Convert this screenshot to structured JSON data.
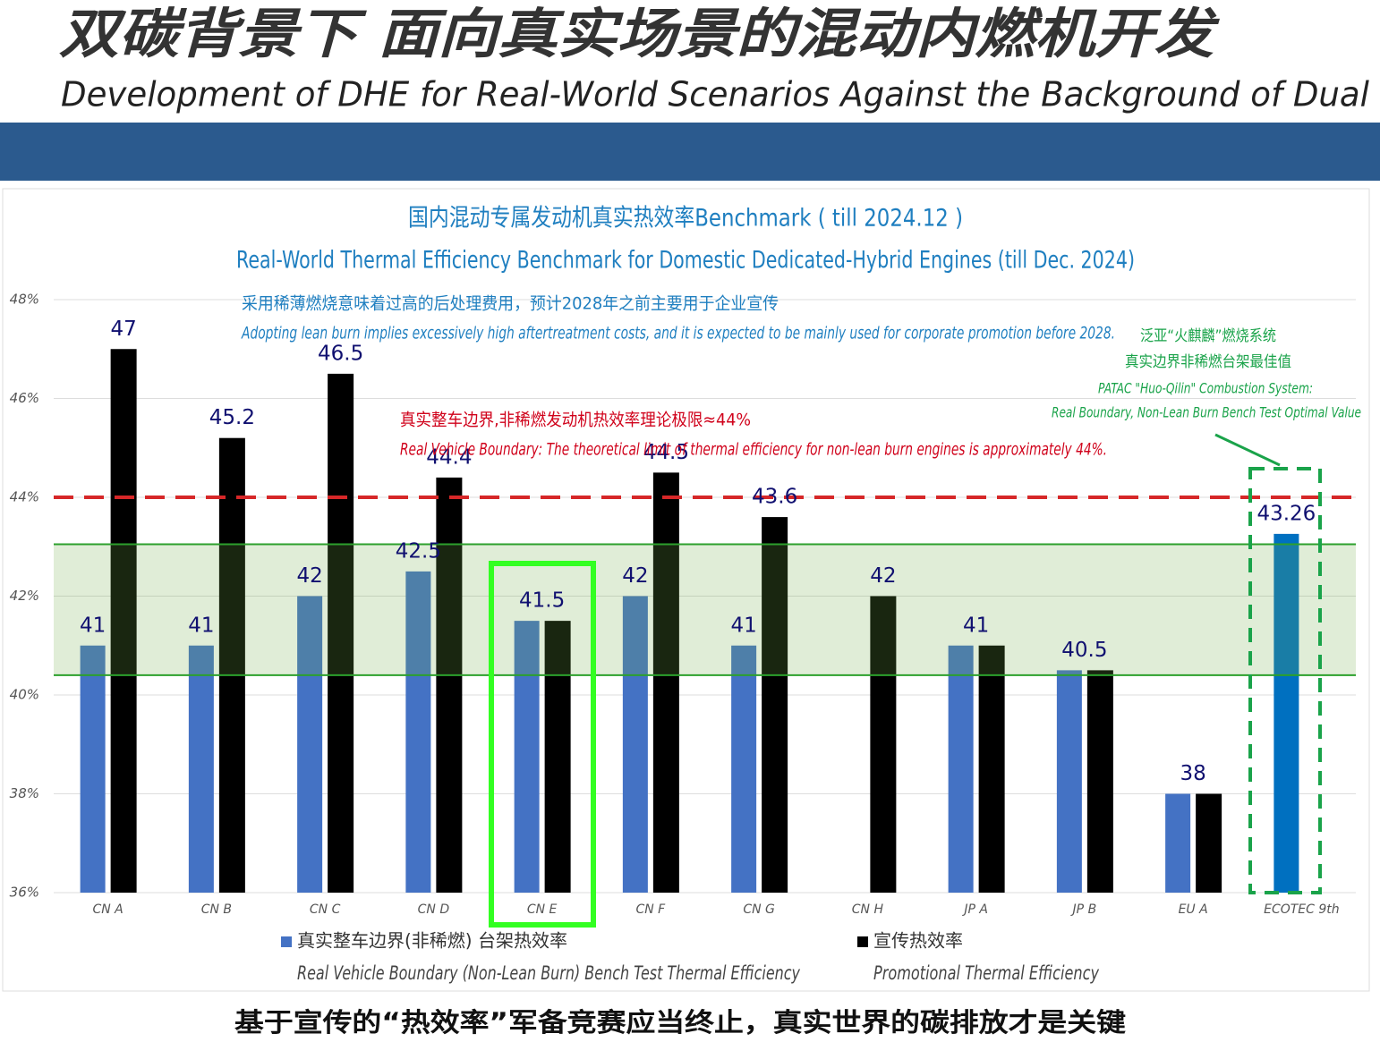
{
  "header": {
    "title": "双碳背景下 面向真实场景的混动内燃机开发",
    "subtitle": "Development of DHE for Real-World Scenarios Against the Background of Dual"
  },
  "chart_data": {
    "type": "bar",
    "title": "国内混动专属发动机真实热效率Benchmark ( till 2024.12 )",
    "subtitle": "Real-World Thermal Efficiency Benchmark for Domestic Dedicated-Hybrid Engines (till Dec. 2024)",
    "categories": [
      "CN A",
      "CN B",
      "CN C",
      "CN D",
      "CN E",
      "CN F",
      "CN G",
      "CN H",
      "JP A",
      "JP B",
      "EU A",
      "ECOTEC 9th"
    ],
    "series": [
      {
        "name": "真实整车边界(非稀燃) 台架热效率",
        "name_en": "Real Vehicle Boundary (Non-Lean Burn) Bench Test Thermal Efficiency",
        "color": "#4472c4",
        "colors": [
          "#4472c4",
          "#4472c4",
          "#4472c4",
          "#4472c4",
          "#4472c4",
          "#4472c4",
          "#4472c4",
          "#4472c4",
          "#4472c4",
          "#4472c4",
          "#4472c4",
          "#0070c0"
        ],
        "values": [
          41,
          41,
          42,
          42.5,
          41.5,
          42,
          41,
          null,
          41,
          40.5,
          38,
          43.26
        ]
      },
      {
        "name": "宣传热效率",
        "name_en": "Promotional Thermal Efficiency",
        "color": "#000000",
        "values": [
          47,
          45.2,
          46.5,
          44.4,
          41.5,
          44.5,
          43.6,
          42,
          41,
          40.5,
          38,
          null
        ]
      }
    ],
    "ylim": [
      36,
      48
    ],
    "yticks": [
      {
        "value": 36,
        "label": "36%"
      },
      {
        "value": 38,
        "label": "38%"
      },
      {
        "value": 40,
        "label": "40%"
      },
      {
        "value": 42,
        "label": "42%"
      },
      {
        "value": 44,
        "label": "44%"
      },
      {
        "value": 46,
        "label": "46%"
      },
      {
        "value": 48,
        "label": "48%"
      }
    ],
    "grid": true,
    "reference_line": {
      "value": 44,
      "color": "#d62728"
    },
    "band": {
      "range": [
        40.4,
        43.05
      ],
      "color": "#70ad47"
    },
    "annotations": [
      {
        "lines": [
          "采用稀薄燃烧意味着过高的后处理费用，预计2028年之前主要用于企业宣传",
          "Adopting lean burn implies excessively high aftertreatment  costs, and it is expected to be mainly used for corporate promotion before 2028."
        ],
        "color": "#1f7fc0"
      },
      {
        "lines": [
          "真实整车边界,非稀燃发动机热效率理论极限≈44%",
          "Real Vehicle Boundary: The theoretical limit of thermal efficiency for non-lean burn engines is approximately 44%."
        ],
        "color": "#d0021b"
      },
      {
        "lines": [
          "泛亚“火麒麟”燃烧系统",
          "真实边界非稀燃台架最佳值",
          "PATAC \"Huo-Qilin\" Combustion System:",
          "Real Boundary, Non-Lean Burn Bench Test Optimal Value"
        ],
        "color": "#1aa34a"
      }
    ]
  },
  "footer": "基于宣传的“热效率”军备竞赛应当终止，真实世界的碳排放才是关键"
}
